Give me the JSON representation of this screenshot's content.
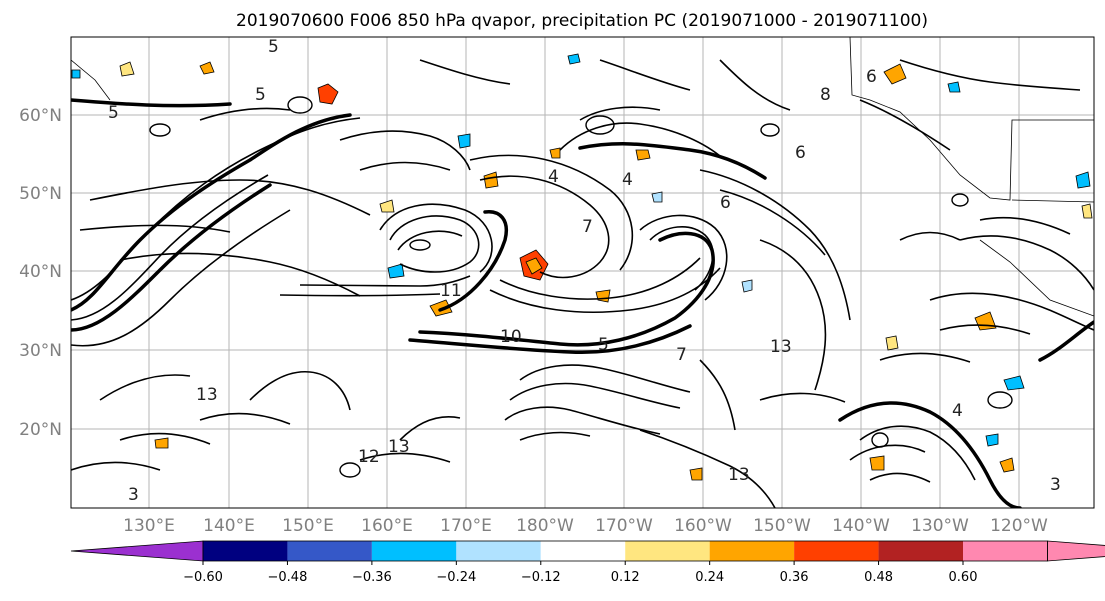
{
  "title": "2019070600 F006 850 hPa qvapor, precipitation PC (2019071000 - 2019071100)",
  "map": {
    "lat_ticks": [
      "60°N",
      "50°N",
      "40°N",
      "30°N",
      "20°N"
    ],
    "lon_ticks": [
      "130°E",
      "140°E",
      "150°E",
      "160°E",
      "170°E",
      "180°W",
      "170°W",
      "160°W",
      "150°W",
      "140°W",
      "130°W",
      "120°W"
    ],
    "grid": true,
    "contour_labels": [
      "5",
      "5",
      "6",
      "7",
      "4",
      "4",
      "11",
      "5",
      "6",
      "13",
      "13",
      "12",
      "13",
      "7",
      "6",
      "3",
      "13",
      "8",
      "10",
      "5",
      "4",
      "3"
    ]
  },
  "colorbar": {
    "extend": "both",
    "colors": [
      "#9b30d0",
      "#000080",
      "#3558c8",
      "#00bfff",
      "#b0e2ff",
      "#ffffff",
      "#ffe680",
      "#ffa500",
      "#ff4000",
      "#b22222",
      "#ff88b0"
    ],
    "extend_low_color": "#9b30d0",
    "extend_high_color": "#ff88b0",
    "tick_labels": [
      "−0.60",
      "−0.48",
      "−0.36",
      "−0.24",
      "−0.12",
      "0.12",
      "0.24",
      "0.36",
      "0.48",
      "0.60"
    ]
  }
}
